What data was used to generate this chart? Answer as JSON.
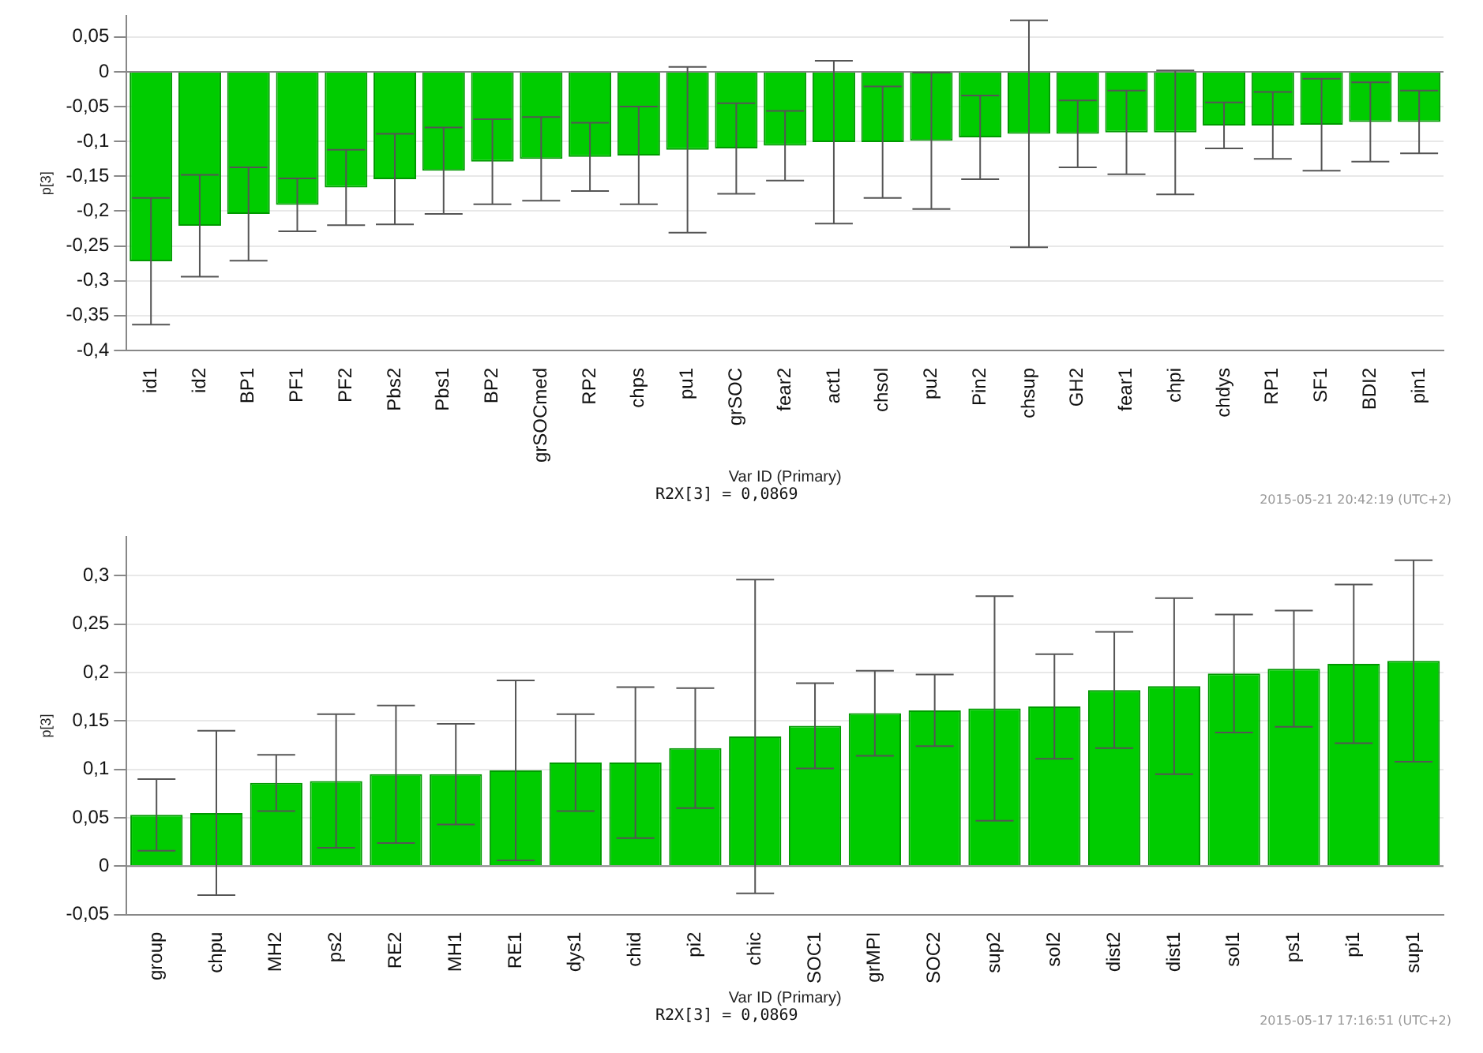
{
  "chart_data": [
    {
      "type": "bar",
      "xlabel": "Var ID (Primary)",
      "ylabel": "p[3]",
      "categories": [
        "id1",
        "id2",
        "BP1",
        "PF1",
        "PF2",
        "Pbs2",
        "Pbs1",
        "BP2",
        "grSOCmed",
        "RP2",
        "chps",
        "pu1",
        "grSOC",
        "fear2",
        "act1",
        "chsol",
        "pu2",
        "Pin2",
        "chsup",
        "GH2",
        "fear1",
        "chpi",
        "chdys",
        "RP1",
        "SF1",
        "BDI2",
        "pin1"
      ],
      "values": [
        -0.272,
        -0.221,
        -0.204,
        -0.191,
        -0.166,
        -0.154,
        -0.142,
        -0.129,
        -0.125,
        -0.122,
        -0.12,
        -0.112,
        -0.11,
        -0.106,
        -0.101,
        -0.101,
        -0.099,
        -0.094,
        -0.089,
        -0.089,
        -0.087,
        -0.087,
        -0.077,
        -0.077,
        -0.076,
        -0.072,
        -0.072
      ],
      "errors": [
        0.091,
        0.073,
        0.067,
        0.038,
        0.054,
        0.065,
        0.062,
        0.061,
        0.06,
        0.049,
        0.07,
        0.119,
        0.065,
        0.05,
        0.117,
        0.08,
        0.098,
        0.06,
        0.163,
        0.048,
        0.06,
        0.089,
        0.033,
        0.048,
        0.066,
        0.057,
        0.045
      ],
      "color": "#00cc00",
      "ylim": [
        -0.4,
        0.08
      ],
      "yticks": [
        {
          "value": -0.4,
          "label": "-0,4"
        },
        {
          "value": -0.35,
          "label": "-0,35"
        },
        {
          "value": -0.3,
          "label": "-0,3"
        },
        {
          "value": -0.25,
          "label": "-0,25"
        },
        {
          "value": -0.2,
          "label": "-0,2"
        },
        {
          "value": -0.15,
          "label": "-0,15"
        },
        {
          "value": -0.1,
          "label": "-0,1"
        },
        {
          "value": -0.05,
          "label": "-0,05"
        },
        0,
        {
          "value": 0.05,
          "label": "0,05"
        }
      ],
      "grid": "y",
      "legend": false,
      "annotations": [
        "R2X[3] = 0,0869",
        "2015-05-21 20:42:19 (UTC+2)"
      ]
    },
    {
      "type": "bar",
      "xlabel": "Var ID (Primary)",
      "ylabel": "p[3]",
      "categories": [
        "group",
        "chpu",
        "MH2",
        "ps2",
        "RE2",
        "MH1",
        "RE1",
        "dys1",
        "chid",
        "pi2",
        "chic",
        "SOC1",
        "grMPI",
        "SOC2",
        "sup2",
        "sol2",
        "dist2",
        "dist1",
        "sol1",
        "ps1",
        "pi1",
        "sup1"
      ],
      "values": [
        0.053,
        0.055,
        0.086,
        0.088,
        0.095,
        0.095,
        0.099,
        0.107,
        0.107,
        0.122,
        0.134,
        0.145,
        0.158,
        0.161,
        0.163,
        0.165,
        0.182,
        0.186,
        0.199,
        0.204,
        0.209,
        0.212
      ],
      "errors": [
        0.037,
        0.085,
        0.029,
        0.069,
        0.071,
        0.052,
        0.093,
        0.05,
        0.078,
        0.062,
        0.162,
        0.044,
        0.044,
        0.037,
        0.116,
        0.054,
        0.06,
        0.091,
        0.061,
        0.06,
        0.082,
        0.104
      ],
      "color": "#00cc00",
      "ylim": [
        -0.05,
        0.34
      ],
      "yticks": [
        {
          "value": -0.05,
          "label": "-0,05"
        },
        0,
        {
          "value": 0.05,
          "label": "0,05"
        },
        {
          "value": 0.1,
          "label": "0,1"
        },
        {
          "value": 0.15,
          "label": "0,15"
        },
        {
          "value": 0.2,
          "label": "0,2"
        },
        {
          "value": 0.25,
          "label": "0,25"
        },
        {
          "value": 0.3,
          "label": "0,3"
        }
      ],
      "grid": "y",
      "legend": false,
      "annotations": [
        "R2X[3] = 0,0869",
        "2015-05-17 17:16:51 (UTC+2)"
      ]
    }
  ]
}
